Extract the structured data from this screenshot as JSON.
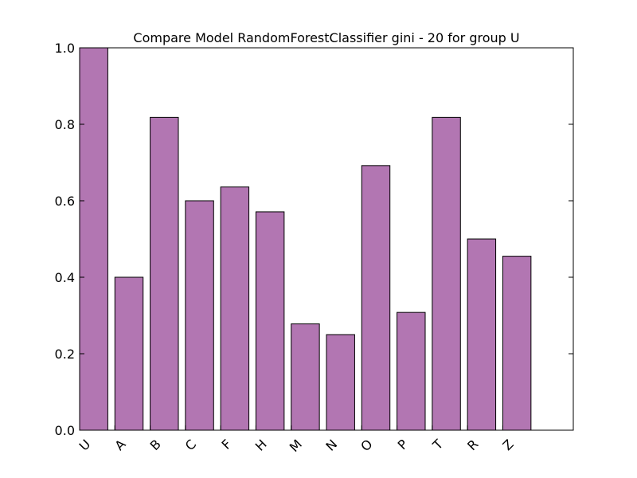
{
  "chart_data": {
    "type": "bar",
    "title": "Compare Model RandomForestClassifier gini - 20 for group U",
    "xlabel": "",
    "ylabel": "",
    "categories": [
      "U",
      "A",
      "B",
      "C",
      "F",
      "H",
      "M",
      "N",
      "O",
      "P",
      "T",
      "R",
      "Z"
    ],
    "values": [
      1.0,
      0.4,
      0.818,
      0.6,
      0.636,
      0.571,
      0.278,
      0.25,
      0.692,
      0.308,
      0.818,
      0.5,
      0.455
    ],
    "ylim": [
      0,
      1.0
    ],
    "yticks": [
      "0.0",
      "0.2",
      "0.4",
      "0.6",
      "0.8",
      "1.0"
    ],
    "grid": false,
    "colors": {
      "bar_fill": "#b276b2",
      "bar_edge": "#000000",
      "axis": "#000000"
    }
  }
}
